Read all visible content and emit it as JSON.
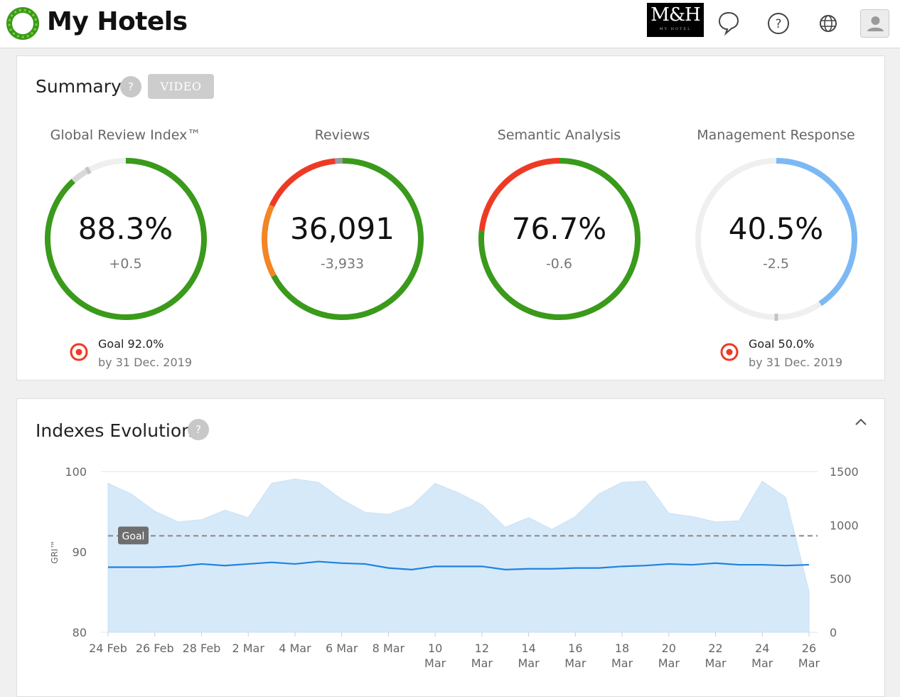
{
  "app": {
    "title": "My Hotels",
    "brand_top": "M&H",
    "brand_bottom": "MY HOTEL"
  },
  "topbar": {
    "icons": [
      "chat-bubble-icon",
      "help-circle-icon",
      "globe-icon",
      "user-icon"
    ]
  },
  "summary": {
    "title": "Summary",
    "help": "?",
    "video_label": "VIDEO",
    "kpis": [
      {
        "label": "Global Review Index™",
        "value": "88.3%",
        "delta": "+0.5",
        "goal": "Goal 92.0%",
        "goal_by": "by 31 Dec. 2019"
      },
      {
        "label": "Reviews",
        "value": "36,091",
        "delta": "-3,933"
      },
      {
        "label": "Semantic Analysis",
        "value": "76.7%",
        "delta": "-0.6"
      },
      {
        "label": "Management Response",
        "value": "40.5%",
        "delta": "-2.5",
        "goal": "Goal 50.0%",
        "goal_by": "by 31 Dec. 2019"
      }
    ],
    "rings": [
      {
        "segments": [
          {
            "from": 0,
            "to": 0.883,
            "color": "#3a9a1b"
          },
          {
            "from": 0.883,
            "to": 0.92,
            "color": "#d8d8d8"
          }
        ],
        "goal_marker": 0.92
      },
      {
        "segments": [
          {
            "from": 0,
            "to": 0.672,
            "color": "#3a9a1b"
          },
          {
            "from": 0.672,
            "to": 0.82,
            "color": "#f28524"
          },
          {
            "from": 0.82,
            "to": 0.985,
            "color": "#ee3a24"
          },
          {
            "from": 0.985,
            "to": 1.0,
            "color": "#9a9a9a"
          }
        ]
      },
      {
        "segments": [
          {
            "from": 0,
            "to": 0.767,
            "color": "#3a9a1b"
          },
          {
            "from": 0.767,
            "to": 1.0,
            "color": "#ee3a24"
          }
        ]
      },
      {
        "segments": [
          {
            "from": 0,
            "to": 0.405,
            "color": "#7cb9f4"
          }
        ],
        "goal_marker": 0.5
      }
    ]
  },
  "evolution": {
    "title": "Indexes Evolution",
    "help": "?",
    "goal_label": "Goal",
    "y_axis_title": "GRI™"
  },
  "chart_data": {
    "type": "area",
    "title": "",
    "ylabel": "GRI™",
    "ylim": [
      80,
      100
    ],
    "y_ticks": [
      100,
      90,
      80
    ],
    "y2lim": [
      0,
      1500
    ],
    "y2_ticks": [
      1500,
      1000,
      500,
      0
    ],
    "x_tick_labels": [
      [
        "24 Feb"
      ],
      [
        "26 Feb"
      ],
      [
        "28 Feb"
      ],
      [
        "2 Mar"
      ],
      [
        "4 Mar"
      ],
      [
        "6 Mar"
      ],
      [
        "8 Mar"
      ],
      [
        "10",
        "Mar"
      ],
      [
        "12",
        "Mar"
      ],
      [
        "14",
        "Mar"
      ],
      [
        "16",
        "Mar"
      ],
      [
        "18",
        "Mar"
      ],
      [
        "20",
        "Mar"
      ],
      [
        "22",
        "Mar"
      ],
      [
        "24",
        "Mar"
      ],
      [
        "26",
        "Mar"
      ]
    ],
    "x": [
      "24 Feb",
      "25 Feb",
      "26 Feb",
      "27 Feb",
      "28 Feb",
      "1 Mar",
      "2 Mar",
      "3 Mar",
      "4 Mar",
      "5 Mar",
      "6 Mar",
      "7 Mar",
      "8 Mar",
      "9 Mar",
      "10 Mar",
      "11 Mar",
      "12 Mar",
      "13 Mar",
      "14 Mar",
      "15 Mar",
      "16 Mar",
      "17 Mar",
      "18 Mar",
      "19 Mar",
      "20 Mar",
      "21 Mar",
      "22 Mar",
      "23 Mar",
      "24 Mar",
      "25 Mar",
      "26 Mar"
    ],
    "goal": 92,
    "series": [
      {
        "axis": "right",
        "type": "area",
        "color": "#d6e9f9",
        "values": [
          1390,
          1290,
          1130,
          1030,
          1050,
          1140,
          1070,
          1390,
          1430,
          1400,
          1240,
          1120,
          1100,
          1180,
          1390,
          1300,
          1190,
          980,
          1070,
          960,
          1080,
          1290,
          1400,
          1410,
          1110,
          1080,
          1030,
          1040,
          1410,
          1260,
          380
        ]
      },
      {
        "axis": "left",
        "type": "line",
        "color": "#1f82e0",
        "values": [
          88.1,
          88.1,
          88.1,
          88.2,
          88.5,
          88.3,
          88.5,
          88.7,
          88.5,
          88.8,
          88.6,
          88.5,
          88.0,
          87.8,
          88.2,
          88.2,
          88.2,
          87.8,
          87.9,
          87.9,
          88.0,
          88.0,
          88.2,
          88.3,
          88.5,
          88.4,
          88.6,
          88.4,
          88.4,
          88.3,
          88.4
        ]
      }
    ]
  }
}
